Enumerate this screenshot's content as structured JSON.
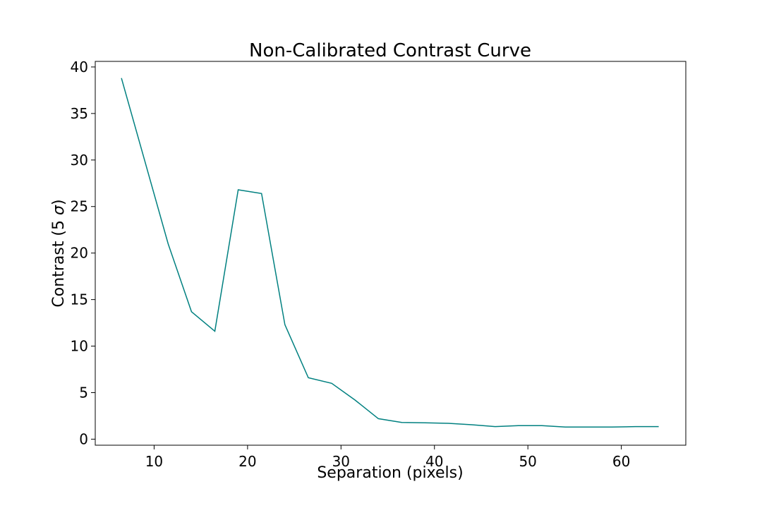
{
  "chart_data": {
    "type": "line",
    "title": "Non-Calibrated Contrast Curve",
    "xlabel": "Separation (pixels)",
    "ylabel_main": "Contrast (5 ",
    "ylabel_symbol": "σ",
    "ylabel_end": ")",
    "xlim": [
      3.7,
      66.9
    ],
    "ylim": [
      -0.65,
      40.6
    ],
    "xticks": [
      10,
      20,
      30,
      40,
      50,
      60
    ],
    "yticks": [
      0,
      5,
      10,
      15,
      20,
      25,
      30,
      35,
      40
    ],
    "grid": false,
    "line_color": "#008080",
    "series": [
      {
        "x": [
          6.5,
          9.0,
          11.5,
          14.0,
          16.5,
          19.0,
          21.5,
          24.0,
          26.5,
          29.0,
          31.5,
          34.0,
          36.5,
          39.0,
          41.5,
          44.0,
          46.5,
          49.0,
          51.5,
          54.0,
          56.5,
          59.0,
          61.5,
          64.0
        ],
        "y": [
          38.8,
          29.9,
          21.0,
          13.7,
          11.6,
          26.8,
          26.4,
          12.3,
          6.6,
          6.0,
          4.2,
          2.2,
          1.8,
          1.75,
          1.7,
          1.55,
          1.35,
          1.45,
          1.45,
          1.3,
          1.3,
          1.3,
          1.35,
          1.35
        ]
      }
    ]
  }
}
